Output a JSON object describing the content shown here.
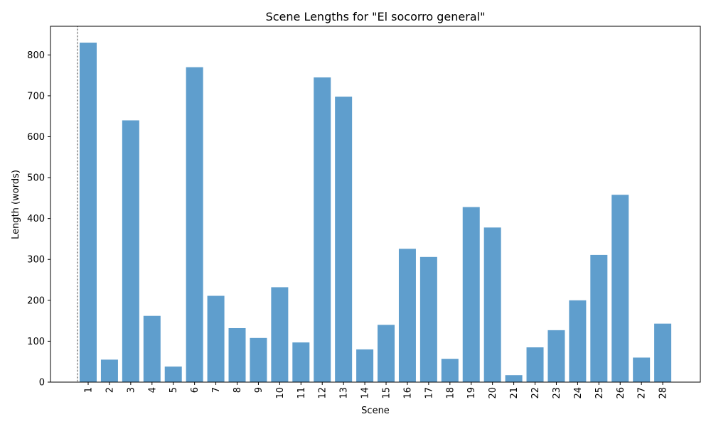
{
  "chart_data": {
    "type": "bar",
    "title": "Scene Lengths for \"El socorro general\"",
    "xlabel": "Scene",
    "ylabel": "Length (words)",
    "categories": [
      "1",
      "2",
      "3",
      "4",
      "5",
      "6",
      "7",
      "8",
      "9",
      "10",
      "11",
      "12",
      "13",
      "14",
      "15",
      "16",
      "17",
      "18",
      "19",
      "20",
      "21",
      "22",
      "23",
      "24",
      "25",
      "26",
      "27",
      "28"
    ],
    "values": [
      830,
      55,
      640,
      162,
      38,
      770,
      211,
      132,
      108,
      232,
      97,
      745,
      698,
      80,
      140,
      326,
      306,
      57,
      428,
      378,
      17,
      85,
      127,
      200,
      311,
      458,
      60,
      143
    ],
    "ylim": [
      0,
      870
    ],
    "yticks": [
      0,
      100,
      200,
      300,
      400,
      500,
      600,
      700,
      800
    ],
    "bar_color": "#5f9ecd",
    "grid": false,
    "reference_line": {
      "x": "1",
      "style": "dotted",
      "color": "#000000"
    }
  }
}
